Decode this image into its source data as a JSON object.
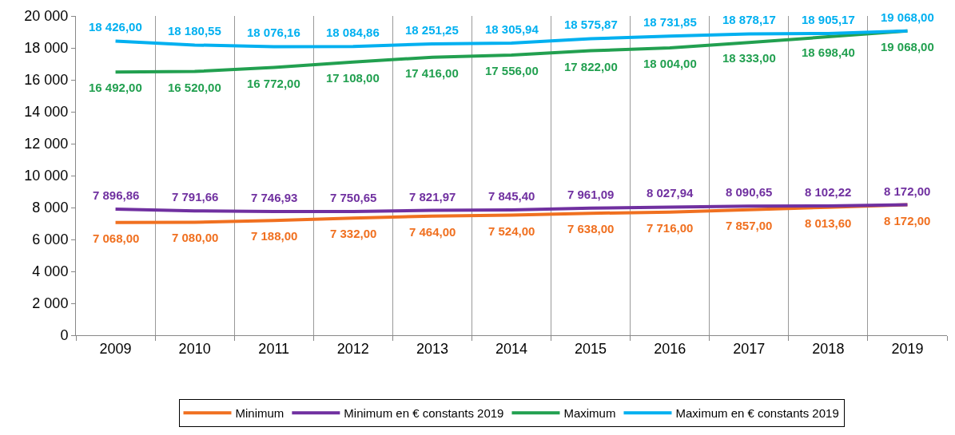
{
  "chart_data": {
    "type": "line",
    "categories": [
      "2009",
      "2010",
      "2011",
      "2012",
      "2013",
      "2014",
      "2015",
      "2016",
      "2017",
      "2018",
      "2019"
    ],
    "ylim": [
      0,
      20000
    ],
    "yticks": [
      0,
      {
        "value": 2000,
        "label": "2 000"
      },
      {
        "value": 4000,
        "label": "4 000"
      },
      {
        "value": 6000,
        "label": "6 000"
      },
      {
        "value": 8000,
        "label": "8 000"
      },
      {
        "value": 10000,
        "label": "10 000"
      },
      {
        "value": 12000,
        "label": "12 000"
      },
      {
        "value": 14000,
        "label": "14 000"
      },
      {
        "value": 16000,
        "label": "16 000"
      },
      {
        "value": 18000,
        "label": "18 000"
      },
      {
        "value": 20000,
        "label": "20 000"
      }
    ],
    "grid": "x",
    "legend": "bottom",
    "marker": "none",
    "line_style": "solid",
    "series": [
      {
        "name": "Minimum",
        "color": "#f07020",
        "values": [
          7068,
          7080,
          7188,
          7332,
          7464,
          7524,
          7638,
          7716,
          7857,
          8013.6,
          8172
        ],
        "value_labels": [
          "7 068,00",
          "7 080,00",
          "7 188,00",
          "7 332,00",
          "7 464,00",
          "7 524,00",
          "7 638,00",
          "7 716,00",
          "7 857,00",
          "8 013,60",
          "8 172,00"
        ]
      },
      {
        "name": "Minimum en € constants 2019",
        "color": "#7030a0",
        "values": [
          7896.86,
          7791.66,
          7746.93,
          7750.65,
          7821.97,
          7845.4,
          7961.09,
          8027.94,
          8090.65,
          8102.22,
          8172
        ],
        "value_labels": [
          "7 896,86",
          "7 791,66",
          "7 746,93",
          "7 750,65",
          "7 821,97",
          "7 845,40",
          "7 961,09",
          "8 027,94",
          "8 090,65",
          "8 102,22",
          "8 172,00"
        ]
      },
      {
        "name": "Maximum",
        "color": "#22a050",
        "values": [
          16492,
          16520,
          16772,
          17108,
          17416,
          17556,
          17822,
          18004,
          18333,
          18698.4,
          19068
        ],
        "value_labels": [
          "16 492,00",
          "16 520,00",
          "16 772,00",
          "17 108,00",
          "17 416,00",
          "17 556,00",
          "17 822,00",
          "18 004,00",
          "18 333,00",
          "18 698,40",
          "19 068,00"
        ]
      },
      {
        "name": "Maximum en € constants 2019",
        "color": "#00b0f0",
        "values": [
          18426,
          18180.55,
          18076.16,
          18084.86,
          18251.25,
          18305.94,
          18575.87,
          18731.85,
          18878.17,
          18905.17,
          19068
        ],
        "value_labels": [
          "18 426,00",
          "18 180,55",
          "18 076,16",
          "18 084,86",
          "18 251,25",
          "18 305,94",
          "18 575,87",
          "18 731,85",
          "18 878,17",
          "18 905,17",
          "19 068,00"
        ]
      }
    ]
  }
}
